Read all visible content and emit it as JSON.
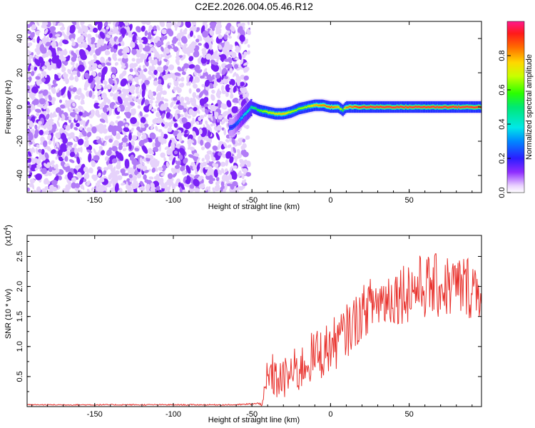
{
  "chart_data": [
    {
      "type": "heatmap",
      "title": "C2E2.2026.004.05.46.R12",
      "xlabel": "Height of straight line (km)",
      "ylabel": "Frequency (Hz)",
      "xlim": [
        -193,
        96
      ],
      "ylim": [
        -50,
        50
      ],
      "x_ticks": [
        -150,
        -100,
        -50,
        0,
        50
      ],
      "y_ticks": [
        -40,
        -20,
        0,
        20,
        40
      ],
      "colorbar": {
        "label": "Normalized spectral amplitude",
        "range": [
          0.0,
          1.0
        ],
        "ticks": [
          0.0,
          0.2,
          0.4,
          0.6,
          0.8
        ]
      },
      "ridge": {
        "description": "narrow high-amplitude band near 0 Hz for heights above about -55 km; broadband noise below",
        "x": [
          -62,
          -55,
          -50,
          -45,
          -40,
          -35,
          -30,
          -25,
          -20,
          -15,
          -10,
          -5,
          0,
          5,
          8,
          10,
          20,
          40,
          60,
          80,
          96
        ],
        "frequency": [
          -12,
          -5,
          0,
          -2,
          -3,
          -4,
          -4,
          -3,
          -1,
          0,
          1,
          1,
          0,
          0,
          -2,
          0,
          0,
          0,
          0,
          0,
          0
        ],
        "peak_amplitude": [
          0.2,
          0.4,
          0.5,
          0.6,
          0.7,
          0.75,
          0.8,
          0.7,
          0.65,
          0.7,
          0.8,
          0.85,
          0.9,
          0.8,
          0.6,
          0.85,
          0.95,
          0.95,
          0.95,
          0.95,
          0.95
        ]
      },
      "noise_region": {
        "x_range": [
          -193,
          -52
        ],
        "frequency_range": [
          -50,
          50
        ],
        "amplitude": 0.1
      }
    },
    {
      "type": "line",
      "title": "",
      "xlabel": "Height of straight line (km)",
      "ylabel": "SNR (10 * v/v)",
      "y_multiplier": "(x10^4)",
      "xlim": [
        -193,
        96
      ],
      "ylim": [
        0,
        2.85
      ],
      "x_ticks": [
        -150,
        -100,
        -50,
        0,
        50
      ],
      "y_ticks": [
        0.5,
        1.0,
        1.5,
        2.0,
        2.5
      ],
      "series": [
        {
          "color": "#e8322d",
          "x": [
            -193,
            -60,
            -45,
            -42,
            -40,
            -38,
            -35,
            -30,
            -25,
            -20,
            -15,
            -10,
            -5,
            0,
            5,
            10,
            15,
            20,
            25,
            30,
            40,
            50,
            60,
            70,
            80,
            90,
            96
          ],
          "mean": [
            0.03,
            0.03,
            0.05,
            0.15,
            0.35,
            0.55,
            0.45,
            0.45,
            0.55,
            0.6,
            0.75,
            0.85,
            0.9,
            1.0,
            1.1,
            1.25,
            1.4,
            1.55,
            1.7,
            1.75,
            1.85,
            1.95,
            2.0,
            2.0,
            2.0,
            2.0,
            2.0
          ],
          "spread": [
            0.01,
            0.01,
            0.02,
            0.2,
            0.6,
            0.4,
            0.35,
            0.35,
            0.4,
            0.4,
            0.4,
            0.45,
            0.45,
            0.45,
            0.45,
            0.45,
            0.45,
            0.45,
            0.45,
            0.5,
            0.5,
            0.55,
            0.55,
            0.55,
            0.55,
            0.55,
            0.55
          ]
        }
      ]
    }
  ]
}
